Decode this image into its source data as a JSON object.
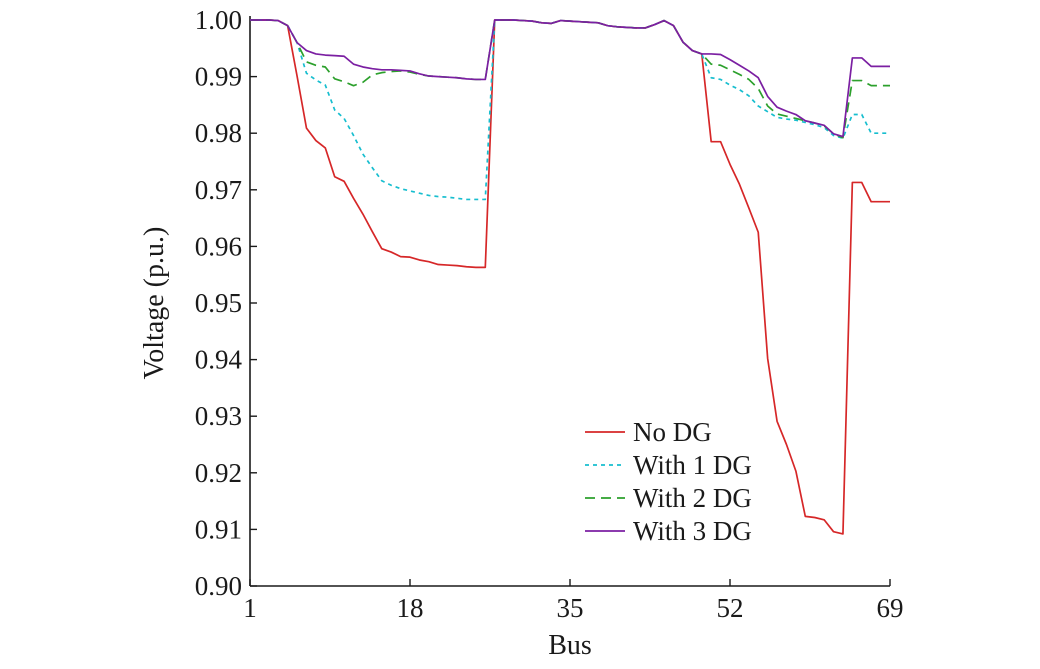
{
  "chart_data": {
    "type": "line",
    "title": "",
    "xlabel": "Bus",
    "ylabel": "Voltage (p.u.)",
    "xlim": [
      1,
      69
    ],
    "ylim": [
      0.9,
      1.0
    ],
    "xticks": [
      1,
      18,
      35,
      52,
      69
    ],
    "xtick_labels": [
      "1",
      "18",
      "35",
      "52",
      "69"
    ],
    "yticks": [
      0.9,
      0.91,
      0.92,
      0.93,
      0.94,
      0.95,
      0.96,
      0.97,
      0.98,
      0.99,
      1.0
    ],
    "ytick_labels": [
      "0.90",
      "0.91",
      "0.92",
      "0.93",
      "0.94",
      "0.95",
      "0.96",
      "0.97",
      "0.98",
      "0.99",
      "1.00"
    ],
    "grid": false,
    "legend_position": "bottom-right",
    "x": [
      1,
      2,
      3,
      4,
      5,
      6,
      7,
      8,
      9,
      10,
      11,
      12,
      13,
      14,
      15,
      16,
      17,
      18,
      19,
      20,
      21,
      22,
      23,
      24,
      25,
      26,
      27,
      28,
      29,
      30,
      31,
      32,
      33,
      34,
      35,
      36,
      37,
      38,
      39,
      40,
      41,
      42,
      43,
      44,
      45,
      46,
      47,
      48,
      49,
      50,
      51,
      52,
      53,
      54,
      55,
      56,
      57,
      58,
      59,
      60,
      61,
      62,
      63,
      64,
      65,
      66,
      67,
      68,
      69
    ],
    "series": [
      {
        "name": "No DG",
        "color": "#d62728",
        "dash": "solid",
        "values": [
          1.0,
          1.0,
          1.0,
          0.9999,
          0.999,
          0.9901,
          0.9809,
          0.9787,
          0.9774,
          0.9723,
          0.9715,
          0.9685,
          0.9657,
          0.9626,
          0.9596,
          0.959,
          0.9582,
          0.9581,
          0.9576,
          0.9573,
          0.9568,
          0.9567,
          0.9566,
          0.9564,
          0.9563,
          0.9563,
          1.0,
          1.0,
          1.0,
          0.9999,
          0.9998,
          0.9995,
          0.9994,
          0.9999,
          0.9998,
          0.9997,
          0.9996,
          0.9995,
          0.999,
          0.9988,
          0.9987,
          0.9986,
          0.9986,
          0.9992,
          0.9999,
          0.999,
          0.9961,
          0.9946,
          0.994,
          0.9785,
          0.9785,
          0.9745,
          0.971,
          0.9668,
          0.9625,
          0.9402,
          0.9291,
          0.925,
          0.9203,
          0.9123,
          0.9121,
          0.9117,
          0.9096,
          0.9092,
          0.9713,
          0.9713,
          0.9679,
          0.9679,
          0.9679
        ]
      },
      {
        "name": "With 1 DG",
        "color": "#17becf",
        "dash": "4,4",
        "values": [
          1.0,
          1.0,
          1.0,
          0.9999,
          0.999,
          0.996,
          0.9906,
          0.9894,
          0.9885,
          0.9841,
          0.9826,
          0.9796,
          0.9763,
          0.9739,
          0.9716,
          0.9708,
          0.9702,
          0.9698,
          0.9694,
          0.969,
          0.9688,
          0.9687,
          0.9685,
          0.9683,
          0.9683,
          0.9683,
          1.0,
          1.0,
          1.0,
          0.9999,
          0.9998,
          0.9995,
          0.9994,
          0.9999,
          0.9998,
          0.9997,
          0.9996,
          0.9995,
          0.999,
          0.9988,
          0.9987,
          0.9986,
          0.9986,
          0.9992,
          0.9999,
          0.999,
          0.9961,
          0.9946,
          0.994,
          0.9898,
          0.9895,
          0.9885,
          0.9877,
          0.9866,
          0.9848,
          0.9838,
          0.9828,
          0.9825,
          0.9823,
          0.9819,
          0.9815,
          0.981,
          0.9796,
          0.9791,
          0.9833,
          0.9833,
          0.98,
          0.98,
          0.98
        ]
      },
      {
        "name": "With 2 DG",
        "color": "#2ca02c",
        "dash": "10,6",
        "values": [
          1.0,
          1.0,
          1.0,
          0.9999,
          0.999,
          0.996,
          0.9926,
          0.992,
          0.9917,
          0.9896,
          0.9891,
          0.9884,
          0.989,
          0.9903,
          0.9907,
          0.9909,
          0.991,
          0.9908,
          0.9904,
          0.9901,
          0.99,
          0.9899,
          0.9898,
          0.9896,
          0.9895,
          0.9895,
          1.0,
          1.0,
          1.0,
          0.9999,
          0.9998,
          0.9995,
          0.9994,
          0.9999,
          0.9998,
          0.9997,
          0.9996,
          0.9995,
          0.999,
          0.9988,
          0.9987,
          0.9986,
          0.9986,
          0.9992,
          0.9999,
          0.999,
          0.9961,
          0.9946,
          0.994,
          0.9922,
          0.992,
          0.9912,
          0.9904,
          0.9895,
          0.9879,
          0.9848,
          0.9834,
          0.983,
          0.9826,
          0.9822,
          0.9818,
          0.9813,
          0.9799,
          0.9792,
          0.9893,
          0.9893,
          0.9884,
          0.9884,
          0.9884
        ]
      },
      {
        "name": "With 3 DG",
        "color": "#7b1fa2",
        "dash": "solid",
        "values": [
          1.0,
          1.0,
          1.0,
          0.9999,
          0.999,
          0.996,
          0.9946,
          0.994,
          0.9938,
          0.9937,
          0.9936,
          0.9922,
          0.9917,
          0.9914,
          0.9912,
          0.9912,
          0.9911,
          0.991,
          0.9905,
          0.9901,
          0.99,
          0.9899,
          0.9898,
          0.9896,
          0.9895,
          0.9895,
          1.0,
          1.0,
          1.0,
          0.9999,
          0.9998,
          0.9995,
          0.9994,
          0.9999,
          0.9998,
          0.9997,
          0.9996,
          0.9995,
          0.999,
          0.9988,
          0.9987,
          0.9986,
          0.9986,
          0.9992,
          0.9999,
          0.999,
          0.9961,
          0.9946,
          0.994,
          0.994,
          0.9939,
          0.993,
          0.992,
          0.991,
          0.9898,
          0.9865,
          0.9846,
          0.9839,
          0.9833,
          0.9822,
          0.9818,
          0.9814,
          0.9799,
          0.9794,
          0.9933,
          0.9933,
          0.9918,
          0.9918,
          0.9918
        ]
      }
    ]
  }
}
